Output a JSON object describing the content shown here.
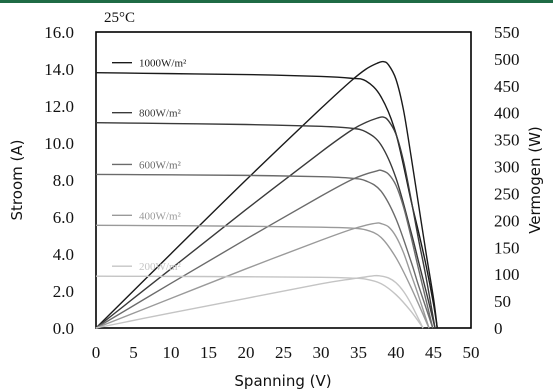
{
  "chart_data": {
    "type": "line",
    "annotation": "25°C",
    "xlabel": "Spanning (V)",
    "ylabel_left": "Stroom (A)",
    "ylabel_right": "Vermogen (W)",
    "xlim": [
      0,
      50
    ],
    "ylim_left": [
      0,
      16
    ],
    "ylim_right": [
      0,
      550
    ],
    "x_ticks": [
      "0",
      "5",
      "10",
      "15",
      "20",
      "25",
      "30",
      "35",
      "40",
      "45",
      "50"
    ],
    "y_left_ticks": [
      "0.0",
      "2.0",
      "4.0",
      "6.0",
      "8.0",
      "10.0",
      "12.0",
      "14.0",
      "16.0"
    ],
    "y_right_ticks": [
      "0",
      "50",
      "100",
      "150",
      "200",
      "250",
      "300",
      "350",
      "400",
      "450",
      "500",
      "550"
    ],
    "grid": false,
    "legend_position": "left, next to each curve",
    "series": [
      {
        "name": "1000W/m²",
        "color": "#1a1a1a",
        "current": {
          "x": [
            0,
            10,
            20,
            30,
            34,
            36,
            38,
            40,
            42,
            43,
            44,
            45,
            45.5
          ],
          "y": [
            13.8,
            13.75,
            13.7,
            13.6,
            13.5,
            13.35,
            12.5,
            10.5,
            6.9,
            5.2,
            3.4,
            1.3,
            0
          ]
        },
        "power": {
          "x": [
            0,
            10,
            20,
            30,
            34,
            36,
            37.5,
            38.3,
            39,
            40,
            41,
            42,
            43,
            44,
            45,
            45.5
          ],
          "y": [
            0,
            138,
            275,
            408,
            459,
            481,
            492,
            495,
            489,
            462,
            405,
            320,
            230,
            140,
            55,
            0
          ]
        }
      },
      {
        "name": "800W/m²",
        "color": "#3a3a3a",
        "current": {
          "x": [
            0,
            10,
            20,
            30,
            34,
            36,
            38,
            40,
            42,
            43,
            44,
            45.2
          ],
          "y": [
            11.1,
            11.05,
            11.0,
            10.9,
            10.8,
            10.6,
            9.9,
            8.1,
            5.2,
            3.6,
            2.0,
            0
          ]
        },
        "power": {
          "x": [
            0,
            10,
            20,
            30,
            34,
            36,
            37.5,
            38.3,
            39,
            40,
            41,
            42,
            43,
            44,
            45.2
          ],
          "y": [
            0,
            110,
            220,
            327,
            367,
            382,
            390,
            392,
            385,
            360,
            310,
            240,
            165,
            95,
            0
          ]
        }
      },
      {
        "name": "600W/m²",
        "color": "#6b6b6b",
        "current": {
          "x": [
            0,
            10,
            20,
            30,
            34,
            36,
            38,
            40,
            42,
            43,
            44.9
          ],
          "y": [
            8.3,
            8.28,
            8.25,
            8.18,
            8.1,
            7.95,
            7.4,
            5.9,
            3.6,
            2.3,
            0
          ]
        },
        "power": {
          "x": [
            0,
            10,
            20,
            30,
            34,
            36,
            37.5,
            38,
            39,
            40,
            41,
            42,
            43,
            44.9
          ],
          "y": [
            0,
            83,
            165,
            245,
            275,
            286,
            292,
            293,
            286,
            265,
            225,
            170,
            110,
            0
          ]
        }
      },
      {
        "name": "400W/m²",
        "color": "#9a9a9a",
        "current": {
          "x": [
            0,
            10,
            20,
            30,
            34,
            36,
            38,
            40,
            42,
            44.4
          ],
          "y": [
            5.55,
            5.53,
            5.5,
            5.45,
            5.4,
            5.3,
            4.9,
            3.8,
            2.2,
            0
          ]
        },
        "power": {
          "x": [
            0,
            10,
            20,
            30,
            34,
            36,
            37.5,
            38,
            39,
            40,
            41,
            42,
            43,
            44.4
          ],
          "y": [
            0,
            55,
            110,
            163,
            183,
            191,
            195,
            194,
            188,
            170,
            140,
            100,
            60,
            0
          ]
        }
      },
      {
        "name": "200W/m²",
        "color": "#c4c4c4",
        "current": {
          "x": [
            0,
            10,
            20,
            30,
            34,
            36,
            38,
            40,
            42,
            43.6
          ],
          "y": [
            2.8,
            2.79,
            2.77,
            2.74,
            2.7,
            2.64,
            2.4,
            1.8,
            0.9,
            0
          ]
        },
        "power": {
          "x": [
            0,
            10,
            20,
            30,
            34,
            36,
            37,
            37.8,
            39,
            40,
            41,
            42,
            43.6
          ],
          "y": [
            0,
            28,
            55,
            82,
            91,
            95,
            97,
            97,
            93,
            84,
            68,
            45,
            0
          ]
        }
      }
    ]
  }
}
